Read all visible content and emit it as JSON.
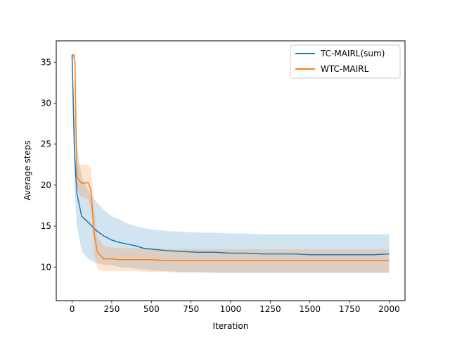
{
  "chart_data": {
    "type": "line",
    "title": "",
    "xlabel": "Iteration",
    "ylabel": "Average steps",
    "xlim": [
      -100,
      2100
    ],
    "ylim": [
      5.9,
      37.6
    ],
    "xticks": [
      0,
      250,
      500,
      750,
      1000,
      1250,
      1500,
      1750,
      2000
    ],
    "yticks": [
      10,
      15,
      20,
      25,
      30,
      35
    ],
    "grid": false,
    "legend_position": "top-right",
    "series": [
      {
        "name": "TC-MAIRL(sum)",
        "color": "#1f77b4",
        "band_color": "#1f77b4",
        "x": [
          0,
          15,
          30,
          60,
          100,
          150,
          200,
          250,
          300,
          350,
          400,
          450,
          500,
          600,
          700,
          800,
          900,
          1000,
          1100,
          1200,
          1300,
          1400,
          1500,
          1600,
          1700,
          1800,
          1900,
          2000
        ],
        "y": [
          35.9,
          24,
          19,
          16.2,
          15.5,
          14.5,
          13.8,
          13.3,
          13.0,
          12.8,
          12.6,
          12.3,
          12.2,
          12.0,
          11.9,
          11.8,
          11.8,
          11.7,
          11.7,
          11.6,
          11.6,
          11.6,
          11.5,
          11.5,
          11.5,
          11.5,
          11.5,
          11.6
        ],
        "lower": [
          35.5,
          20,
          15,
          12.0,
          11.0,
          10.5,
          10.3,
          10.2,
          10.0,
          9.9,
          9.8,
          9.7,
          9.6,
          9.5,
          9.4,
          9.4,
          9.3,
          9.3,
          9.3,
          9.3,
          9.3,
          9.3,
          9.3,
          9.3,
          9.3,
          9.3,
          9.3,
          9.3
        ],
        "upper": [
          36.0,
          29,
          25,
          21.0,
          19.5,
          18.0,
          17.0,
          16.2,
          15.8,
          15.3,
          15.0,
          14.8,
          14.6,
          14.4,
          14.3,
          14.2,
          14.2,
          14.1,
          14.1,
          14.0,
          14.0,
          14.0,
          14.0,
          14.0,
          14.0,
          14.0,
          14.0,
          14.0
        ]
      },
      {
        "name": "WTC-MAIRL",
        "color": "#ff7f0e",
        "band_color": "#ff7f0e",
        "x": [
          0,
          10,
          18,
          30,
          60,
          100,
          118,
          140,
          160,
          200,
          250,
          300,
          400,
          500,
          600,
          700,
          800,
          900,
          1000,
          1200,
          1400,
          1600,
          1800,
          2000
        ],
        "y": [
          35.9,
          35.9,
          35.0,
          21.0,
          20.2,
          20.3,
          19.5,
          14.0,
          11.8,
          11.0,
          11.0,
          10.9,
          10.9,
          10.9,
          10.8,
          10.8,
          10.8,
          10.8,
          10.8,
          10.8,
          10.8,
          10.8,
          10.8,
          10.8
        ],
        "lower": [
          35.5,
          35.5,
          33.0,
          19.5,
          18.5,
          18.3,
          17.0,
          11.5,
          9.8,
          9.5,
          9.5,
          9.5,
          9.5,
          9.4,
          9.4,
          9.3,
          9.3,
          9.3,
          9.3,
          9.3,
          9.3,
          9.3,
          9.3,
          9.3
        ],
        "upper": [
          36.0,
          36.0,
          36.0,
          22.5,
          22.5,
          22.5,
          22.0,
          17.0,
          13.8,
          12.5,
          12.4,
          12.3,
          12.3,
          12.3,
          12.2,
          12.2,
          12.2,
          12.2,
          12.2,
          12.2,
          12.2,
          12.2,
          12.2,
          12.2
        ]
      }
    ]
  }
}
